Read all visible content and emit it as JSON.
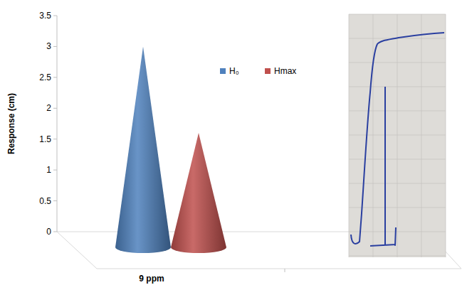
{
  "chart_data": {
    "type": "bar",
    "marker": "cone",
    "categories": [
      "9 ppm"
    ],
    "series": [
      {
        "name": "H₀",
        "color": "#4f81bd",
        "values": [
          3.0
        ]
      },
      {
        "name": "Hmax",
        "color": "#c0504d",
        "values": [
          1.6
        ]
      }
    ],
    "y_label": "Response (cm)",
    "ylim": [
      0,
      3.5
    ],
    "yticks": [
      0,
      0.5,
      1,
      1.5,
      2,
      2.5,
      3,
      3.5
    ],
    "legend": "top"
  }
}
